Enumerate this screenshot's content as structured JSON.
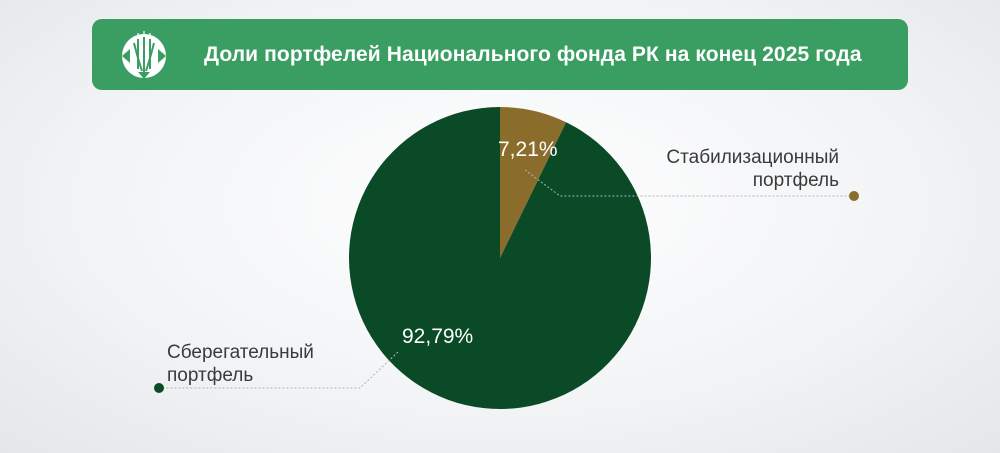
{
  "header": {
    "title": "Доли портфелей Национального фонда РК на конец 2025 года",
    "logo": "national-fund-emblem"
  },
  "chart_data": {
    "type": "pie",
    "title": "Доли портфелей Национального фонда РК на конец 2025 года",
    "slices": [
      {
        "name": "Стабилизационный портфель",
        "line1": "Стабилизационный",
        "line2": "портфель",
        "value": 7.21,
        "label": "7,21%",
        "color": "#8a6d2b"
      },
      {
        "name": "Сберегательный портфель",
        "line1": "Сберегательный",
        "line2": "портфель",
        "value": 92.79,
        "label": "92,79%",
        "color": "#0a4a26"
      }
    ]
  },
  "colors": {
    "header": "#3a9e63",
    "text": "#3a3a3a"
  }
}
